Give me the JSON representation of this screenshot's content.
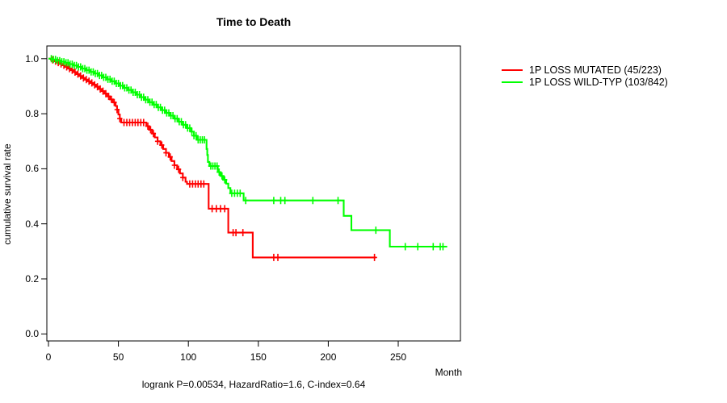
{
  "title": "Time to Death",
  "footer": "logrank P=0.00534, HazardRatio=1.6, C-index=0.64",
  "x_axis": {
    "label": "Month",
    "tick_labels": [
      "0",
      "50",
      "100",
      "150",
      "200",
      "250"
    ],
    "tick_values": [
      0,
      50,
      100,
      150,
      200,
      250
    ]
  },
  "y_axis": {
    "label": "cumulative survival rate",
    "tick_labels": [
      "0.0",
      "0.2",
      "0.4",
      "0.6",
      "0.8",
      "1.0"
    ],
    "tick_values": [
      0,
      0.2,
      0.4,
      0.6,
      0.8,
      1.0
    ]
  },
  "legend": [
    {
      "label": "1P LOSS MUTATED (45/223)",
      "color": "#ff0000"
    },
    {
      "label": "1P LOSS WILD-TYP (103/842)",
      "color": "#00ff00"
    }
  ],
  "chart_data": {
    "type": "line",
    "subtype": "kaplan-meier-step",
    "title": "Time to Death",
    "xlabel": "Month",
    "ylabel": "cumulative survival rate",
    "xlim": [
      0,
      293
    ],
    "ylim": [
      0,
      1.02
    ],
    "grid": false,
    "legend_position": "right-outside",
    "annotation": "logrank P=0.00534, HazardRatio=1.6, C-index=0.64",
    "series": [
      {
        "name": "1P LOSS MUTATED (45/223)",
        "color": "#ff0000",
        "end_month": 234,
        "points": [
          [
            0,
            1.0
          ],
          [
            2,
            0.996
          ],
          [
            4,
            0.991
          ],
          [
            6,
            0.986
          ],
          [
            8,
            0.981
          ],
          [
            10,
            0.976
          ],
          [
            12,
            0.97
          ],
          [
            14,
            0.964
          ],
          [
            16,
            0.958
          ],
          [
            18,
            0.951
          ],
          [
            20,
            0.944
          ],
          [
            22,
            0.937
          ],
          [
            24,
            0.93
          ],
          [
            26,
            0.924
          ],
          [
            28,
            0.918
          ],
          [
            30,
            0.912
          ],
          [
            32,
            0.905
          ],
          [
            34,
            0.898
          ],
          [
            36,
            0.89
          ],
          [
            38,
            0.882
          ],
          [
            40,
            0.873
          ],
          [
            42,
            0.863
          ],
          [
            44,
            0.852
          ],
          [
            46,
            0.841
          ],
          [
            48,
            0.828
          ],
          [
            49,
            0.815
          ],
          [
            50,
            0.797
          ],
          [
            51,
            0.782
          ],
          [
            52,
            0.768
          ],
          [
            70,
            0.755
          ],
          [
            72,
            0.742
          ],
          [
            74,
            0.728
          ],
          [
            76,
            0.714
          ],
          [
            78,
            0.7
          ],
          [
            80,
            0.686
          ],
          [
            82,
            0.672
          ],
          [
            84,
            0.658
          ],
          [
            86,
            0.643
          ],
          [
            88,
            0.628
          ],
          [
            90,
            0.613
          ],
          [
            92,
            0.598
          ],
          [
            94,
            0.583
          ],
          [
            96,
            0.568
          ],
          [
            98,
            0.553
          ],
          [
            99,
            0.545
          ],
          [
            114.5,
            0.455
          ],
          [
            128.5,
            0.368
          ],
          [
            146,
            0.278
          ]
        ],
        "censor_months": [
          3,
          5,
          7,
          9,
          11,
          13,
          15,
          17,
          19,
          21,
          23,
          25,
          27,
          29,
          31,
          33,
          35,
          37,
          39,
          41,
          43,
          45,
          47,
          49,
          51,
          54,
          56,
          58,
          60,
          62,
          64,
          66,
          68,
          71,
          73,
          75,
          78,
          81,
          84,
          87,
          90,
          93,
          96,
          101,
          103,
          105,
          107,
          109,
          111,
          117,
          120,
          123,
          126,
          132,
          134,
          139,
          161,
          164,
          233
        ]
      },
      {
        "name": "1P LOSS WILD-TYP (103/842)",
        "color": "#00ff00",
        "end_month": 285,
        "points": [
          [
            0,
            1.0
          ],
          [
            3,
            0.997
          ],
          [
            6,
            0.993
          ],
          [
            9,
            0.989
          ],
          [
            12,
            0.985
          ],
          [
            15,
            0.98
          ],
          [
            18,
            0.975
          ],
          [
            21,
            0.97
          ],
          [
            24,
            0.964
          ],
          [
            27,
            0.958
          ],
          [
            30,
            0.952
          ],
          [
            33,
            0.946
          ],
          [
            36,
            0.939
          ],
          [
            39,
            0.932
          ],
          [
            42,
            0.925
          ],
          [
            45,
            0.918
          ],
          [
            48,
            0.91
          ],
          [
            51,
            0.902
          ],
          [
            54,
            0.894
          ],
          [
            57,
            0.886
          ],
          [
            60,
            0.878
          ],
          [
            63,
            0.869
          ],
          [
            66,
            0.86
          ],
          [
            69,
            0.851
          ],
          [
            72,
            0.842
          ],
          [
            75,
            0.833
          ],
          [
            78,
            0.823
          ],
          [
            81,
            0.813
          ],
          [
            84,
            0.803
          ],
          [
            87,
            0.793
          ],
          [
            90,
            0.782
          ],
          [
            93,
            0.771
          ],
          [
            96,
            0.76
          ],
          [
            99,
            0.748
          ],
          [
            102,
            0.735
          ],
          [
            104,
            0.72
          ],
          [
            106,
            0.705
          ],
          [
            113,
            0.672
          ],
          [
            113.5,
            0.65
          ],
          [
            114,
            0.625
          ],
          [
            115,
            0.61
          ],
          [
            121,
            0.588
          ],
          [
            123,
            0.574
          ],
          [
            125,
            0.56
          ],
          [
            127,
            0.546
          ],
          [
            128.5,
            0.53
          ],
          [
            130,
            0.511
          ],
          [
            139.5,
            0.485
          ],
          [
            211,
            0.429
          ],
          [
            216.5,
            0.377
          ],
          [
            244,
            0.317
          ]
        ],
        "censor_months": [
          2,
          3.5,
          5,
          6.5,
          8,
          9.5,
          11,
          12.5,
          14,
          15.5,
          17,
          18.5,
          20,
          21.5,
          23,
          24.5,
          26,
          27.5,
          29,
          30.5,
          32,
          33.5,
          35,
          36.5,
          38,
          39.5,
          41,
          42.5,
          44,
          45.5,
          47,
          48.5,
          50,
          51.5,
          53,
          54.5,
          56,
          57.5,
          59,
          60.5,
          62,
          63.5,
          65,
          66.5,
          68,
          69.5,
          71,
          72.5,
          74,
          75.5,
          77,
          78.5,
          80,
          81.5,
          83,
          84.5,
          86,
          87.5,
          89,
          90.5,
          92,
          93.5,
          95,
          96.5,
          98,
          99.5,
          101,
          102.5,
          104,
          105.5,
          107,
          108.5,
          110,
          111.5,
          116,
          117.5,
          119,
          120.5,
          122,
          124,
          126,
          131,
          133,
          135,
          137,
          141,
          161,
          166,
          169,
          189,
          207,
          234,
          255,
          264,
          275,
          280,
          282
        ]
      }
    ]
  }
}
